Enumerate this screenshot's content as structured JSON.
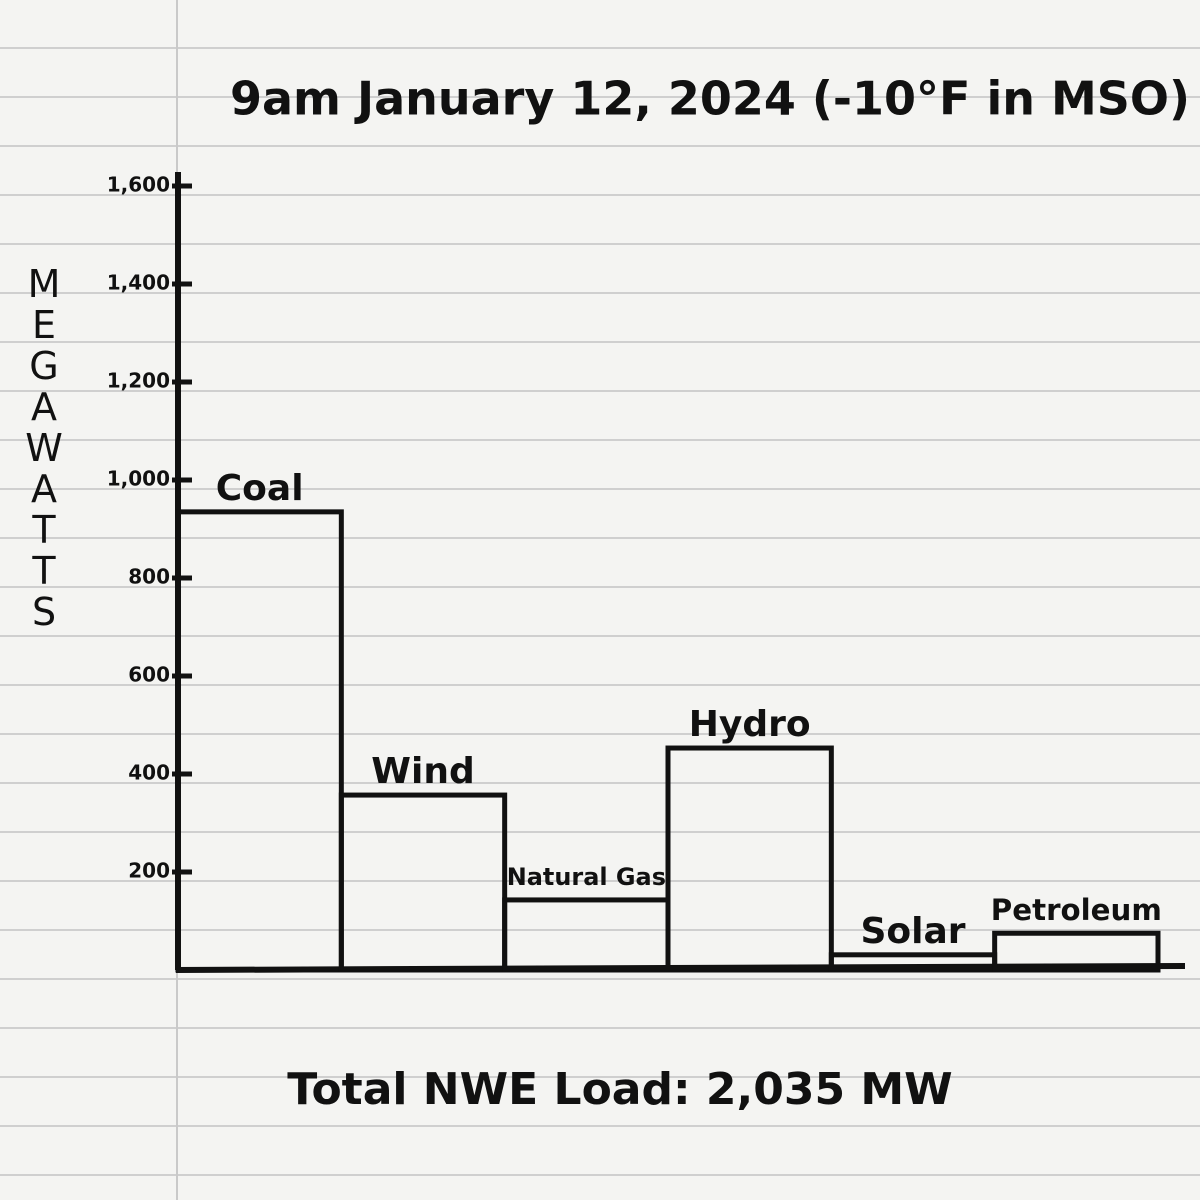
{
  "chart_data": {
    "type": "bar",
    "title": "9am January 12, 2024 (-10°F in MSO)",
    "y_label": "MEGAWATTS",
    "annotation": "Total NWE Load: 2,035 MW",
    "categories": [
      "Coal",
      "Wind",
      "Natural Gas",
      "Hydro",
      "Solar",
      "Petroleum"
    ],
    "values": [
      935,
      357,
      143,
      453,
      31,
      75
    ],
    "color": "#111111",
    "ylim": [
      0,
      1600
    ],
    "yticks": [
      {
        "value": 200,
        "label": "200"
      },
      {
        "value": 400,
        "label": "400"
      },
      {
        "value": 600,
        "label": "600"
      },
      {
        "value": 800,
        "label": "800"
      },
      {
        "value": 1000,
        "label": "1,000"
      },
      {
        "value": 1200,
        "label": "1,200"
      },
      {
        "value": 1400,
        "label": "1,400"
      },
      {
        "value": 1600,
        "label": "1,600"
      }
    ],
    "grid": false
  }
}
